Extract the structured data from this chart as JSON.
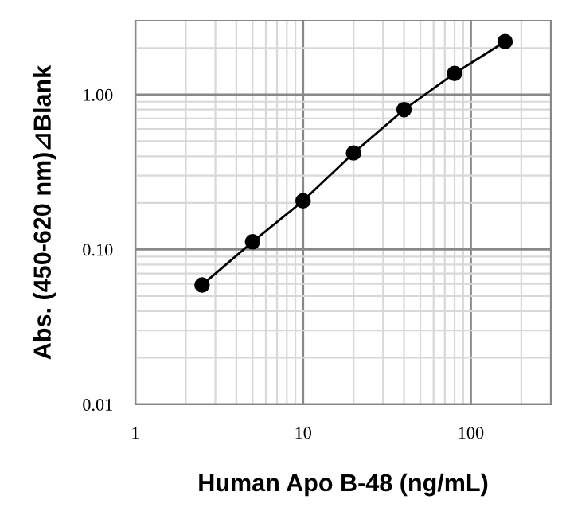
{
  "chart_data": {
    "type": "line",
    "xlabel": "Human Apo B-48 (ng/mL)",
    "ylabel": "Abs. (450-620 nm)⊿Blank",
    "x": [
      2.5,
      5,
      10,
      20,
      40,
      80,
      160
    ],
    "series": [
      {
        "color": "#000000",
        "values": [
          0.059,
          0.112,
          0.206,
          0.42,
          0.8,
          1.37,
          2.2
        ]
      }
    ],
    "log": "xy",
    "xlim": [
      1,
      300
    ],
    "ylim": [
      0.01,
      3
    ],
    "xticks": [
      1,
      10,
      100
    ],
    "yticks": [
      {
        "value": 0.01,
        "label": "0.01"
      },
      {
        "value": 0.1,
        "label": "0.10"
      },
      {
        "value": 1,
        "label": "1.00"
      }
    ],
    "grid": true,
    "marker": "circle",
    "line_style": "solid"
  }
}
